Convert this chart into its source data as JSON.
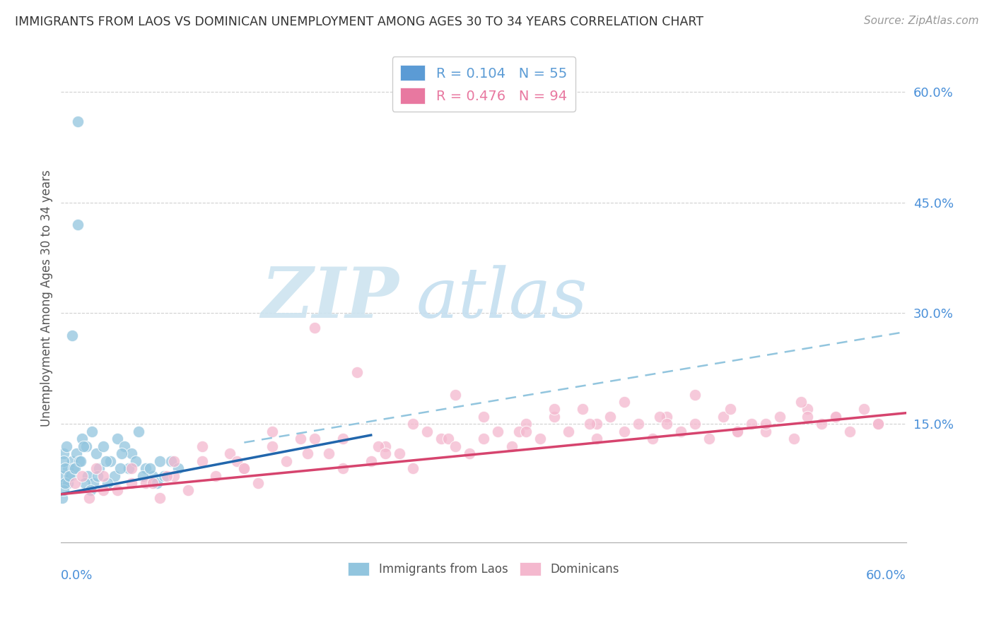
{
  "title": "IMMIGRANTS FROM LAOS VS DOMINICAN UNEMPLOYMENT AMONG AGES 30 TO 34 YEARS CORRELATION CHART",
  "source": "Source: ZipAtlas.com",
  "legend_entries": [
    {
      "label": "R = 0.104   N = 55",
      "color": "#5b9bd5"
    },
    {
      "label": "R = 0.476   N = 94",
      "color": "#e878a0"
    }
  ],
  "legend_bottom": [
    {
      "label": "Immigrants from Laos",
      "color": "#92c5de"
    },
    {
      "label": "Dominicans",
      "color": "#f4b8ce"
    }
  ],
  "laos_color": "#92c5de",
  "dominican_color": "#f4b8ce",
  "trendline_laos_color": "#2166ac",
  "trendline_dominican_color": "#d6446e",
  "trendline_dashed_color": "#92c5de",
  "watermark_zip_color": "#cde4f0",
  "watermark_atlas_color": "#c5dff0",
  "background_color": "#ffffff",
  "grid_color": "#d0d0d0",
  "ylabel_label": "Unemployment Among Ages 30 to 34 years",
  "xlim": [
    0.0,
    0.6
  ],
  "ylim": [
    -0.01,
    0.65
  ],
  "yticks": [
    0.15,
    0.3,
    0.45,
    0.6
  ],
  "ytick_labels": [
    "15.0%",
    "30.0%",
    "45.0%",
    "60.0%"
  ],
  "laos_x": [
    0.012,
    0.012,
    0.008,
    0.005,
    0.003,
    0.002,
    0.001,
    0.004,
    0.008,
    0.015,
    0.018,
    0.022,
    0.025,
    0.03,
    0.035,
    0.04,
    0.045,
    0.05,
    0.055,
    0.06,
    0.065,
    0.07,
    0.002,
    0.003,
    0.005,
    0.007,
    0.009,
    0.011,
    0.013,
    0.016,
    0.019,
    0.023,
    0.027,
    0.032,
    0.038,
    0.043,
    0.048,
    0.053,
    0.058,
    0.063,
    0.068,
    0.073,
    0.078,
    0.083,
    0.001,
    0.002,
    0.003,
    0.006,
    0.01,
    0.014,
    0.017,
    0.021,
    0.026,
    0.033,
    0.042
  ],
  "laos_y": [
    0.56,
    0.42,
    0.27,
    0.09,
    0.07,
    0.11,
    0.08,
    0.12,
    0.1,
    0.13,
    0.12,
    0.14,
    0.11,
    0.12,
    0.1,
    0.13,
    0.12,
    0.11,
    0.14,
    0.09,
    0.08,
    0.1,
    0.1,
    0.09,
    0.07,
    0.08,
    0.09,
    0.11,
    0.1,
    0.12,
    0.08,
    0.07,
    0.09,
    0.1,
    0.08,
    0.11,
    0.09,
    0.1,
    0.08,
    0.09,
    0.07,
    0.08,
    0.1,
    0.09,
    0.05,
    0.06,
    0.07,
    0.08,
    0.09,
    0.1,
    0.07,
    0.06,
    0.08,
    0.07,
    0.09
  ],
  "dom_x": [
    0.01,
    0.02,
    0.03,
    0.04,
    0.05,
    0.06,
    0.07,
    0.08,
    0.09,
    0.1,
    0.11,
    0.12,
    0.13,
    0.14,
    0.15,
    0.16,
    0.17,
    0.18,
    0.19,
    0.2,
    0.21,
    0.22,
    0.23,
    0.24,
    0.25,
    0.26,
    0.27,
    0.28,
    0.29,
    0.3,
    0.31,
    0.32,
    0.33,
    0.34,
    0.35,
    0.36,
    0.37,
    0.38,
    0.39,
    0.4,
    0.41,
    0.42,
    0.43,
    0.44,
    0.45,
    0.46,
    0.47,
    0.48,
    0.49,
    0.5,
    0.51,
    0.52,
    0.53,
    0.54,
    0.55,
    0.56,
    0.57,
    0.58,
    0.025,
    0.05,
    0.075,
    0.1,
    0.125,
    0.15,
    0.175,
    0.2,
    0.225,
    0.25,
    0.275,
    0.3,
    0.325,
    0.35,
    0.375,
    0.4,
    0.425,
    0.45,
    0.475,
    0.5,
    0.525,
    0.55,
    0.03,
    0.08,
    0.13,
    0.18,
    0.23,
    0.28,
    0.33,
    0.38,
    0.43,
    0.48,
    0.53,
    0.58,
    0.015,
    0.065
  ],
  "dom_y": [
    0.07,
    0.05,
    0.08,
    0.06,
    0.09,
    0.07,
    0.05,
    0.08,
    0.06,
    0.1,
    0.08,
    0.11,
    0.09,
    0.07,
    0.12,
    0.1,
    0.13,
    0.28,
    0.11,
    0.09,
    0.22,
    0.1,
    0.12,
    0.11,
    0.09,
    0.14,
    0.13,
    0.19,
    0.11,
    0.13,
    0.14,
    0.12,
    0.15,
    0.13,
    0.16,
    0.14,
    0.17,
    0.15,
    0.16,
    0.14,
    0.15,
    0.13,
    0.16,
    0.14,
    0.15,
    0.13,
    0.16,
    0.14,
    0.15,
    0.14,
    0.16,
    0.13,
    0.17,
    0.15,
    0.16,
    0.14,
    0.17,
    0.15,
    0.09,
    0.07,
    0.08,
    0.12,
    0.1,
    0.14,
    0.11,
    0.13,
    0.12,
    0.15,
    0.13,
    0.16,
    0.14,
    0.17,
    0.15,
    0.18,
    0.16,
    0.19,
    0.17,
    0.15,
    0.18,
    0.16,
    0.06,
    0.1,
    0.09,
    0.13,
    0.11,
    0.12,
    0.14,
    0.13,
    0.15,
    0.14,
    0.16,
    0.15,
    0.08,
    0.07
  ],
  "laos_trendline_x": [
    0.0,
    0.22
  ],
  "laos_trendline_y": [
    0.055,
    0.135
  ],
  "dom_trendline_x": [
    0.0,
    0.6
  ],
  "dom_trendline_y": [
    0.055,
    0.165
  ],
  "dashed_trendline_x": [
    0.13,
    0.6
  ],
  "dashed_trendline_y": [
    0.125,
    0.275
  ]
}
